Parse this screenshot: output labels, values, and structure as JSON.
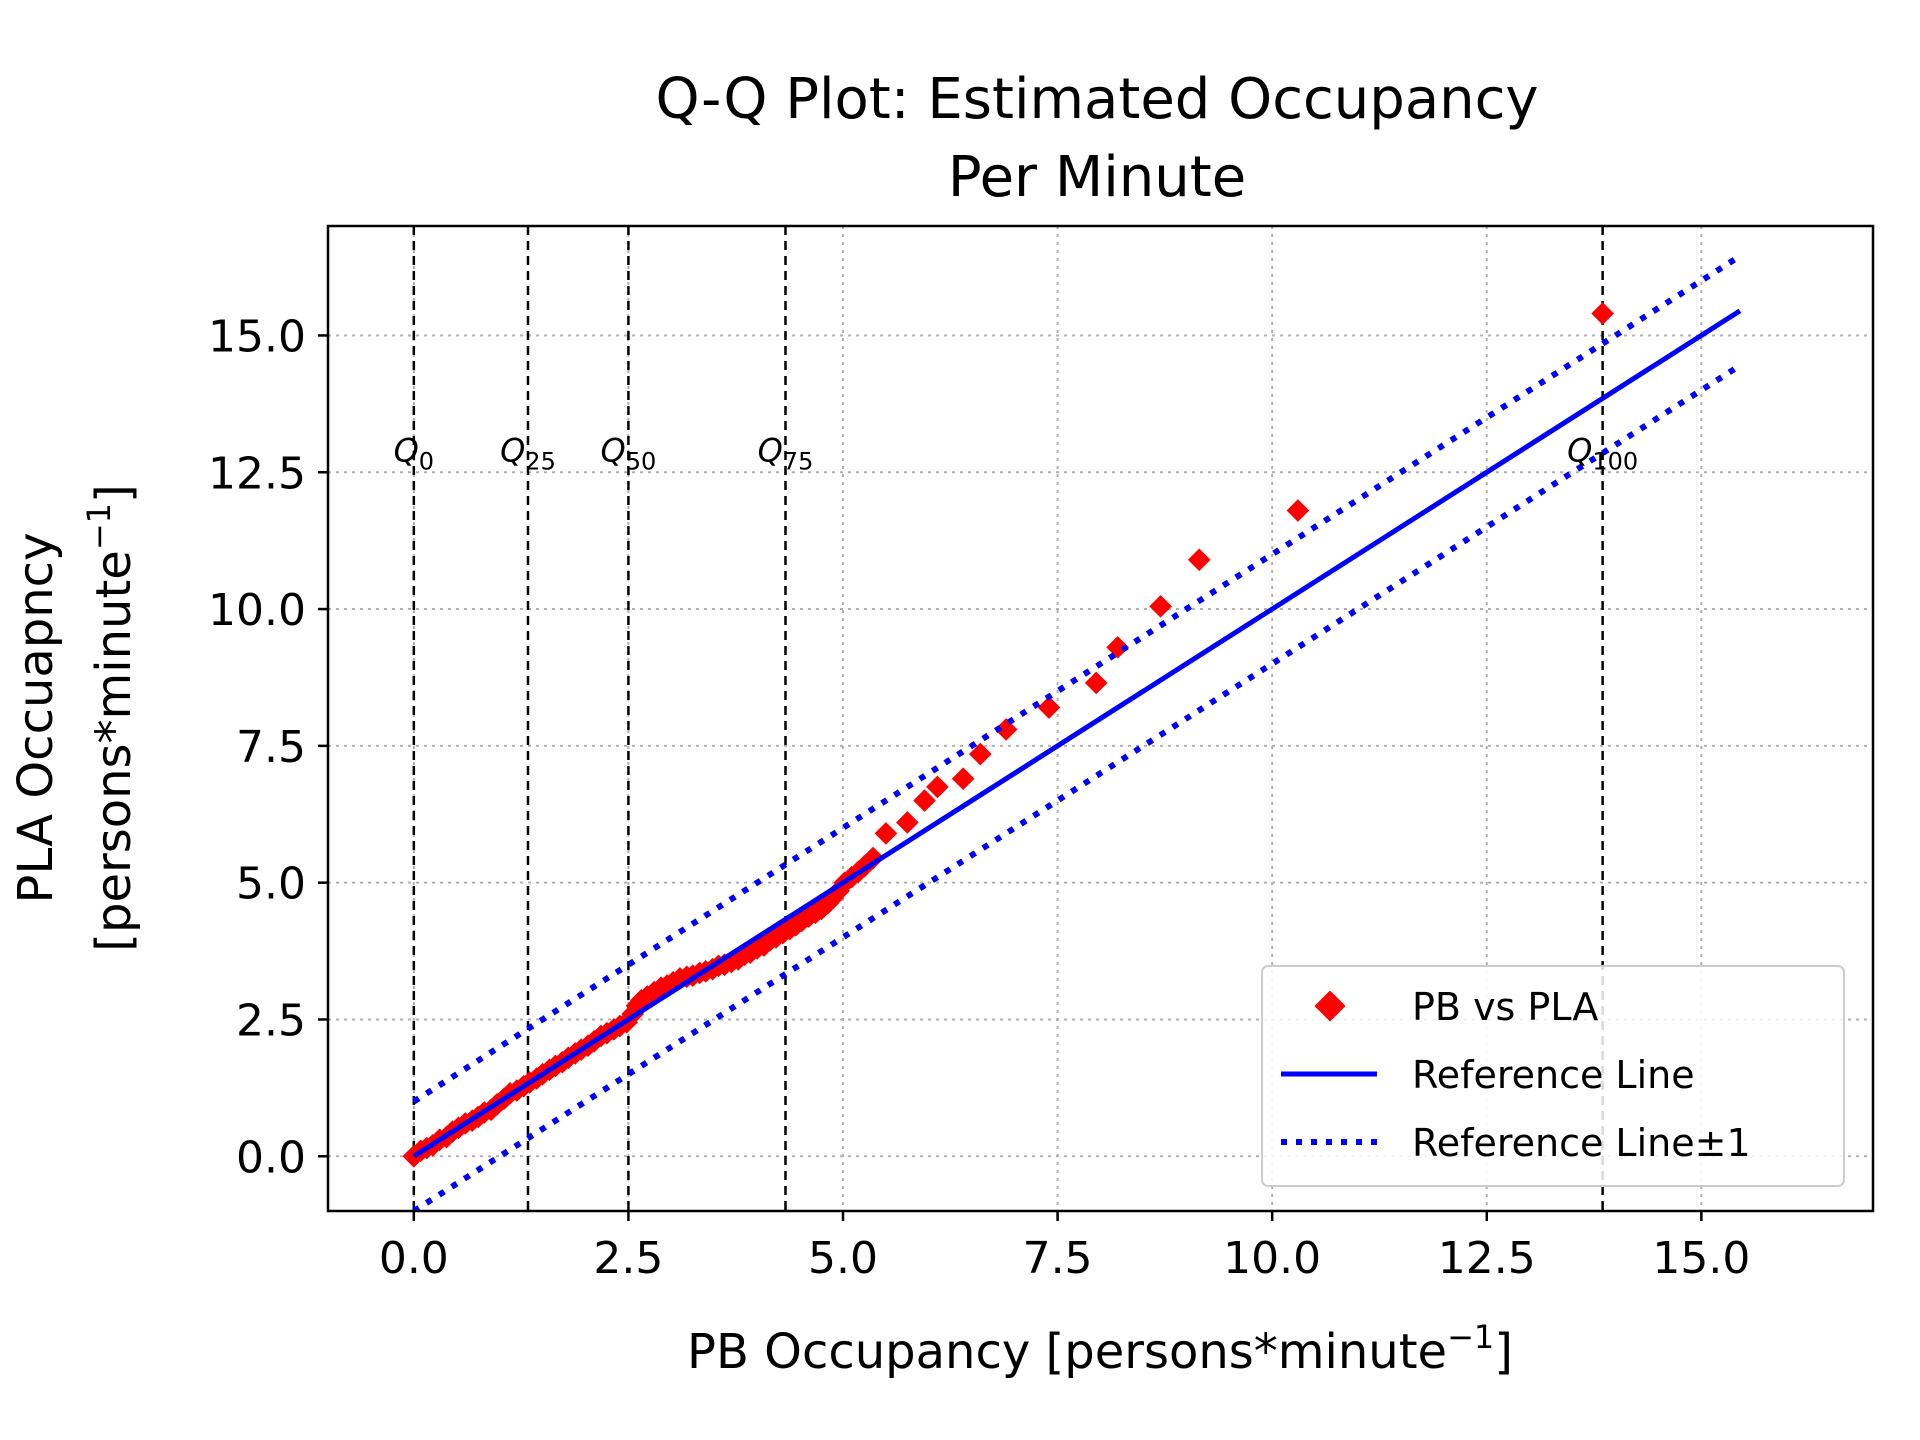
{
  "chart_data": {
    "type": "scatter",
    "title_lines": [
      "Q-Q Plot: Estimated Occupancy",
      "Per Minute"
    ],
    "xlabel_main": "PB Occupancy [persons*minute",
    "xlabel_sup": "−1",
    "xlabel_end": "]",
    "ylabel_line1": "PLA Occuapncy",
    "ylabel_line2_main": "[persons*minute",
    "ylabel_line2_sup": "−1",
    "ylabel_line2_end": "]",
    "xlim": [
      -1.0,
      17.0
    ],
    "ylim": [
      -1.0,
      17.0
    ],
    "grid": true,
    "x_ticks": [
      0.0,
      2.5,
      5.0,
      7.5,
      10.0,
      12.5,
      15.0
    ],
    "x_tick_labels": [
      "0.0",
      "2.5",
      "5.0",
      "7.5",
      "10.0",
      "12.5",
      "15.0"
    ],
    "y_ticks": [
      0.0,
      2.5,
      5.0,
      7.5,
      10.0,
      12.5,
      15.0
    ],
    "y_tick_labels": [
      "0.0",
      "2.5",
      "5.0",
      "7.5",
      "10.0",
      "12.5",
      "15.0"
    ],
    "quantile_lines": [
      {
        "x": 0.0,
        "base": "Q",
        "sub": "0"
      },
      {
        "x": 1.33,
        "base": "Q",
        "sub": "25"
      },
      {
        "x": 2.5,
        "base": "Q",
        "sub": "50"
      },
      {
        "x": 4.33,
        "base": "Q",
        "sub": "75"
      },
      {
        "x": 13.85,
        "base": "Q",
        "sub": "100"
      }
    ],
    "quantile_label_y": 12.7,
    "reference_line": {
      "name": "Reference Line",
      "x": [
        0.0,
        15.45
      ],
      "y": [
        0.0,
        15.45
      ],
      "color": "#0000ff"
    },
    "reference_band": {
      "name": "Reference Line±1",
      "offset": 1.0,
      "x": [
        0.0,
        15.45
      ],
      "color": "#0000ff"
    },
    "series": [
      {
        "name": "PB vs PLA",
        "color": "#ff0000",
        "marker": "diamond",
        "x": [
          0.0,
          0.08,
          0.15,
          0.22,
          0.3,
          0.38,
          0.45,
          0.52,
          0.6,
          0.68,
          0.75,
          0.82,
          0.9,
          0.97,
          1.05,
          1.12,
          1.2,
          1.28,
          1.35,
          1.43,
          1.5,
          1.58,
          1.65,
          1.73,
          1.8,
          1.88,
          1.95,
          2.03,
          2.1,
          2.18,
          2.25,
          2.33,
          2.4,
          2.48,
          2.55,
          2.6,
          2.65,
          2.72,
          2.8,
          2.88,
          2.95,
          3.02,
          3.1,
          3.18,
          3.25,
          3.33,
          3.4,
          3.48,
          3.55,
          3.62,
          3.7,
          3.78,
          3.85,
          3.92,
          4.0,
          4.08,
          4.15,
          4.22,
          4.3,
          4.38,
          4.45,
          4.52,
          4.6,
          4.68,
          4.75,
          4.82,
          4.88,
          4.95,
          5.02,
          5.1,
          5.18,
          5.25,
          5.35,
          5.5,
          5.75,
          5.95,
          6.1,
          6.4,
          6.6,
          6.9,
          7.4,
          7.95,
          8.2,
          8.7,
          9.15,
          10.3,
          13.85
        ],
        "y": [
          0.0,
          0.1,
          0.15,
          0.2,
          0.3,
          0.35,
          0.45,
          0.52,
          0.6,
          0.65,
          0.72,
          0.8,
          0.85,
          0.95,
          1.05,
          1.15,
          1.2,
          1.28,
          1.35,
          1.42,
          1.5,
          1.58,
          1.65,
          1.72,
          1.8,
          1.88,
          1.95,
          2.02,
          2.1,
          2.2,
          2.25,
          2.32,
          2.38,
          2.45,
          2.6,
          2.75,
          2.85,
          2.92,
          3.0,
          3.08,
          3.12,
          3.18,
          3.25,
          3.28,
          3.3,
          3.35,
          3.38,
          3.42,
          3.48,
          3.5,
          3.55,
          3.6,
          3.68,
          3.72,
          3.8,
          3.85,
          3.95,
          4.0,
          4.08,
          4.15,
          4.22,
          4.3,
          4.38,
          4.45,
          4.52,
          4.62,
          4.72,
          4.85,
          5.0,
          5.1,
          5.2,
          5.3,
          5.45,
          5.9,
          6.1,
          6.5,
          6.75,
          6.9,
          7.35,
          7.8,
          8.2,
          8.65,
          9.3,
          10.05,
          10.9,
          11.8,
          15.4
        ]
      }
    ],
    "legend": {
      "placement": "lower-right",
      "entries": [
        "PB vs PLA",
        "Reference Line",
        "Reference Line±1"
      ]
    }
  }
}
